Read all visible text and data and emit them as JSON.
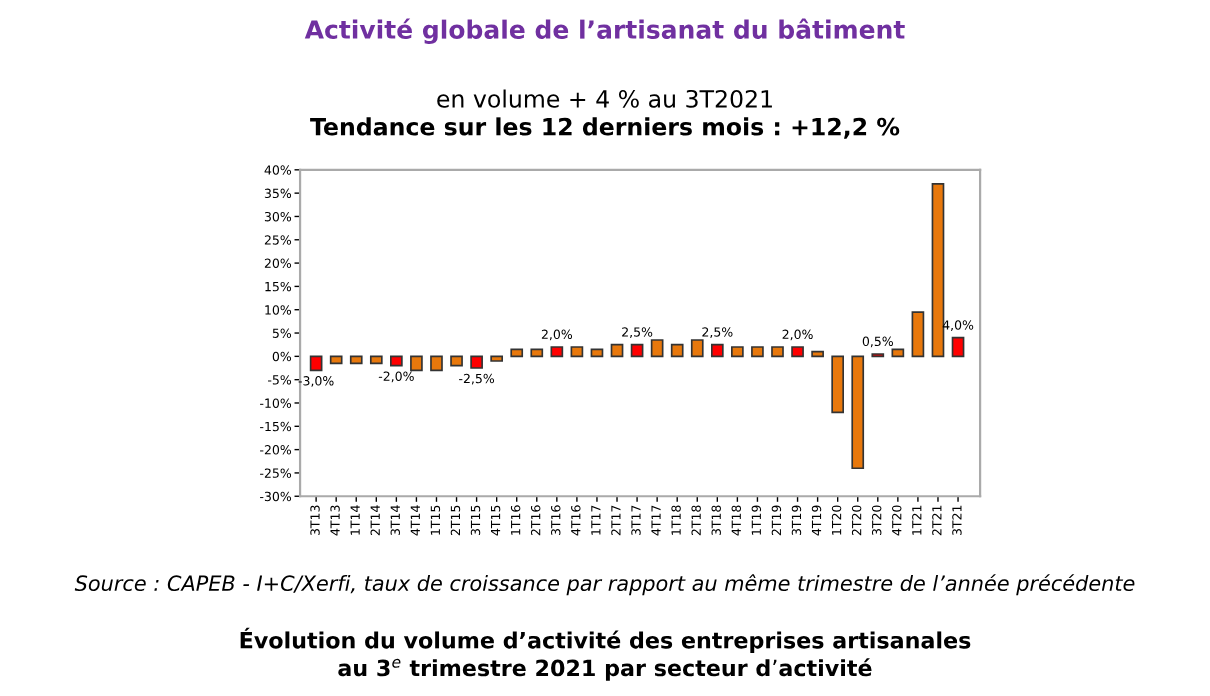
{
  "chart_data": {
    "type": "bar",
    "title": "Activité globale de l’artisanat du bâtiment",
    "subtitle": "en volume + 4 % au 3T2021",
    "annotations": [
      "Tendance sur les 12 derniers mois : +12,2 %",
      "Source : CAPEB - I+C/Xerfi, taux de croissance par rapport au même trimestre de l’année précédente",
      "Évolution du volume d’activité des entreprises artisanales\nau 3$^{e}$ trimestre 2021 par secteur d’activité"
    ],
    "categories": [
      "3T13",
      "4T13",
      "1T14",
      "2T14",
      "3T14",
      "4T14",
      "1T15",
      "2T15",
      "3T15",
      "4T15",
      "1T16",
      "2T16",
      "3T16",
      "4T16",
      "1T17",
      "2T17",
      "3T17",
      "4T17",
      "1T18",
      "2T18",
      "3T18",
      "4T18",
      "1T19",
      "2T19",
      "3T19",
      "4T19",
      "1T20",
      "2T20",
      "3T20",
      "4T20",
      "1T21",
      "2T21",
      "3T21"
    ],
    "values": [
      -3.0,
      -1.5,
      -1.5,
      -1.5,
      -2.0,
      -3.0,
      -3.0,
      -2.0,
      -2.5,
      -1.0,
      1.5,
      1.5,
      2.0,
      2.0,
      1.5,
      2.5,
      2.5,
      3.5,
      2.5,
      3.5,
      2.5,
      2.0,
      2.0,
      2.0,
      2.0,
      1.0,
      -12,
      -24,
      0.5,
      1.5,
      9.5,
      37,
      4.0
    ],
    "colors": [
      "#ff0000",
      "#e8780c",
      "#e8780c",
      "#e8780c",
      "#ff0000",
      "#e8780c",
      "#e8780c",
      "#e8780c",
      "#ff0000",
      "#e8780c",
      "#e8780c",
      "#e8780c",
      "#ff0000",
      "#e8780c",
      "#e8780c",
      "#e8780c",
      "#ff0000",
      "#e8780c",
      "#e8780c",
      "#e8780c",
      "#ff0000",
      "#e8780c",
      "#e8780c",
      "#e8780c",
      "#ff0000",
      "#e8780c",
      "#e8780c",
      "#e8780c",
      "#ff0000",
      "#e8780c",
      "#e8780c",
      "#e8780c",
      "#ff0000"
    ],
    "value_labels": [
      "-3,0%",
      null,
      null,
      null,
      "-2,0%",
      null,
      null,
      null,
      "-2,5%",
      null,
      null,
      null,
      "2,0%",
      null,
      null,
      null,
      "2,5%",
      null,
      null,
      null,
      "2,5%",
      null,
      null,
      null,
      "2,0%",
      null,
      null,
      null,
      "0,5%",
      null,
      null,
      null,
      "4,0%"
    ],
    "ylim": [
      -30,
      40
    ],
    "yticks": [
      {
        "value": -30,
        "label": "-30%"
      },
      {
        "value": -25,
        "label": "-25%"
      },
      {
        "value": -20,
        "label": "-20%"
      },
      {
        "value": -15,
        "label": "-15%"
      },
      {
        "value": -10,
        "label": "-10%"
      },
      {
        "value": -5,
        "label": "-5%"
      },
      {
        "value": 0,
        "label": "0%"
      },
      {
        "value": 5,
        "label": "5%"
      },
      {
        "value": 10,
        "label": "10%"
      },
      {
        "value": 15,
        "label": "15%"
      },
      {
        "value": 20,
        "label": "20%"
      },
      {
        "value": 25,
        "label": "25%"
      },
      {
        "value": 30,
        "label": "30%"
      },
      {
        "value": 35,
        "label": "35%"
      },
      {
        "value": 40,
        "label": "40%"
      }
    ],
    "grid": false,
    "legend": false
  }
}
